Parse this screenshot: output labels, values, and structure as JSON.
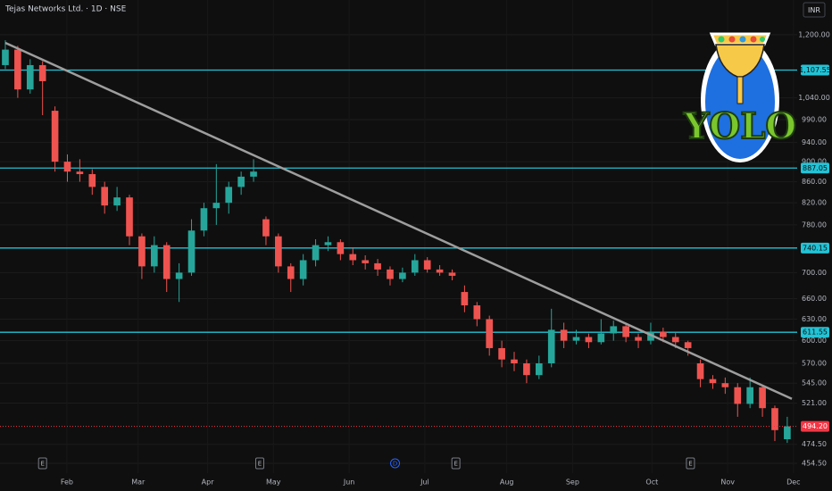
{
  "chart_data": {
    "type": "candlestick",
    "title": "Tejas Networks Ltd. · 1D · NSE",
    "currency": "INR",
    "log_scale": true,
    "grid": true,
    "up_color": "#26a69a",
    "down_color": "#ef5350",
    "xlim": [
      -0.43,
      63.8
    ],
    "xticks": [
      {
        "value": 4.96,
        "label": "Feb"
      },
      {
        "value": 10.7,
        "label": "Mar"
      },
      {
        "value": 16.3,
        "label": "Apr"
      },
      {
        "value": 21.6,
        "label": "May"
      },
      {
        "value": 27.7,
        "label": "Jun"
      },
      {
        "value": 33.8,
        "label": "Jul"
      },
      {
        "value": 40.4,
        "label": "Aug"
      },
      {
        "value": 45.7,
        "label": "Sep"
      },
      {
        "value": 52.1,
        "label": "Oct"
      },
      {
        "value": 58.2,
        "label": "Nov"
      },
      {
        "value": 63.5,
        "label": "Dec"
      }
    ],
    "ylim": [
      444.5,
      1298
    ],
    "yticks": [
      {
        "value": 1200,
        "label": "1,200.00"
      },
      {
        "value": 1040,
        "label": "1,040.00"
      },
      {
        "value": 990,
        "label": "990.00"
      },
      {
        "value": 940,
        "label": "940.00"
      },
      {
        "value": 900,
        "label": "900.00"
      },
      {
        "value": 860,
        "label": "860.00"
      },
      {
        "value": 820,
        "label": "820.00"
      },
      {
        "value": 780,
        "label": "780.00"
      },
      {
        "value": 700,
        "label": "700.00"
      },
      {
        "value": 660,
        "label": "660.00"
      },
      {
        "value": 630,
        "label": "630.00"
      },
      {
        "value": 600,
        "label": "600.00"
      },
      {
        "value": 570,
        "label": "570.00"
      },
      {
        "value": 545,
        "label": "545.00"
      },
      {
        "value": 521,
        "label": "521.00"
      },
      {
        "value": 474.5,
        "label": "474.50"
      },
      {
        "value": 454.5,
        "label": "454.50"
      }
    ],
    "open": [
      1120,
      1160,
      1060,
      1120,
      1010,
      900,
      880,
      875,
      850,
      815,
      830,
      760,
      710,
      745,
      690,
      700,
      770,
      810,
      820,
      850,
      870,
      790,
      760,
      710,
      690,
      720,
      745,
      750,
      730,
      720,
      715,
      705,
      690,
      700,
      720,
      705,
      700,
      670,
      650,
      630,
      590,
      575,
      570,
      555,
      570,
      615,
      600,
      605,
      598,
      610,
      620,
      605,
      600,
      612,
      605,
      598,
      570,
      550,
      545,
      540,
      520,
      540,
      515,
      480
    ],
    "high": [
      1185,
      1170,
      1135,
      1130,
      1020,
      915,
      905,
      885,
      860,
      850,
      835,
      765,
      760,
      750,
      715,
      790,
      820,
      895,
      860,
      880,
      905,
      795,
      765,
      715,
      730,
      755,
      760,
      755,
      740,
      728,
      722,
      710,
      708,
      730,
      725,
      712,
      705,
      680,
      655,
      635,
      600,
      585,
      575,
      580,
      645,
      625,
      615,
      610,
      630,
      628,
      625,
      610,
      625,
      618,
      612,
      600,
      575,
      555,
      552,
      545,
      552,
      542,
      518,
      505
    ],
    "low": [
      1110,
      1040,
      1050,
      1000,
      880,
      860,
      860,
      835,
      800,
      805,
      745,
      690,
      700,
      670,
      655,
      695,
      760,
      780,
      800,
      835,
      860,
      745,
      700,
      670,
      680,
      710,
      735,
      720,
      712,
      705,
      695,
      680,
      685,
      695,
      700,
      695,
      688,
      640,
      620,
      580,
      565,
      560,
      545,
      550,
      565,
      590,
      595,
      590,
      595,
      600,
      598,
      590,
      595,
      598,
      590,
      580,
      540,
      538,
      532,
      505,
      515,
      505,
      478,
      476
    ],
    "close": [
      1160,
      1060,
      1120,
      1080,
      900,
      880,
      875,
      850,
      815,
      830,
      760,
      710,
      745,
      690,
      700,
      770,
      810,
      820,
      850,
      870,
      880,
      760,
      710,
      690,
      720,
      745,
      750,
      730,
      720,
      715,
      705,
      690,
      700,
      720,
      705,
      700,
      695,
      650,
      630,
      590,
      575,
      570,
      555,
      570,
      615,
      600,
      605,
      598,
      610,
      620,
      605,
      600,
      612,
      605,
      598,
      590,
      550,
      545,
      540,
      520,
      540,
      515,
      490,
      494.2
    ],
    "last_price": {
      "value": 494.2,
      "label": "494.20",
      "color": "#f23645"
    },
    "levels": [
      {
        "value": 1107.55,
        "label": "1,107.55"
      },
      {
        "value": 887.05,
        "label": "887.05"
      },
      {
        "value": 740.15,
        "label": "740.15"
      },
      {
        "value": 611.55,
        "label": "611.55"
      }
    ],
    "level_color": "#22c3d6",
    "trendline": {
      "x": [
        0,
        63.37
      ],
      "y": [
        1178,
        526
      ],
      "color": "#9e9e9e"
    },
    "events": [
      {
        "label": "E",
        "x": 3.0
      },
      {
        "label": "E",
        "x": 20.5
      },
      {
        "label": "D",
        "x": 31.4
      },
      {
        "label": "E",
        "x": 36.3
      },
      {
        "label": "E",
        "x": 55.2
      }
    ],
    "sticker": {
      "text": "YOLO"
    }
  }
}
